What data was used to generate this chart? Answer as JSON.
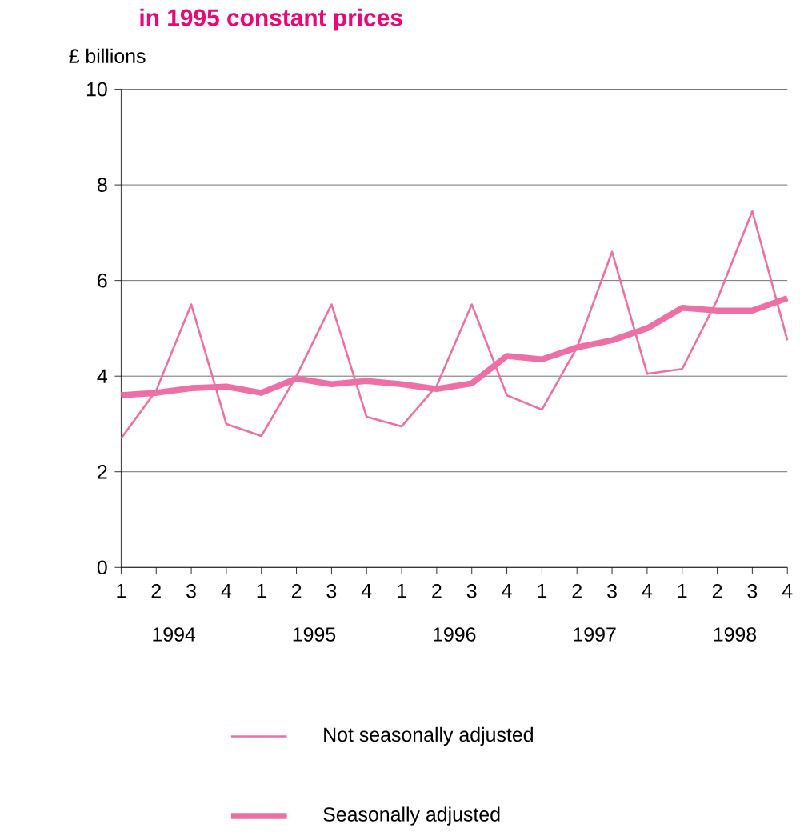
{
  "chart_data": {
    "type": "line",
    "title": "in 1995 constant prices",
    "ylabel": "£ billions",
    "categories": [
      "1",
      "2",
      "3",
      "4",
      "1",
      "2",
      "3",
      "4",
      "1",
      "2",
      "3",
      "4",
      "1",
      "2",
      "3",
      "4",
      "1",
      "2",
      "3",
      "4"
    ],
    "annotations": [
      "1994",
      "1995",
      "1996",
      "1997",
      "1998"
    ],
    "series": [
      {
        "name": "Not seasonally adjusted",
        "color": "#ee6fa5",
        "values": [
          2.7,
          3.7,
          5.5,
          3.0,
          2.75,
          4.0,
          5.5,
          3.15,
          2.95,
          3.8,
          5.5,
          3.6,
          3.3,
          4.6,
          6.6,
          4.05,
          4.15,
          5.6,
          7.45,
          4.75
        ]
      },
      {
        "name": "Seasonally adjusted",
        "color": "#ee6fa5",
        "values": [
          3.6,
          3.65,
          3.75,
          3.78,
          3.65,
          3.95,
          3.83,
          3.9,
          3.83,
          3.73,
          3.85,
          4.42,
          4.35,
          4.6,
          4.75,
          5.0,
          5.43,
          5.37,
          5.37,
          5.63
        ]
      }
    ],
    "ylim": [
      0,
      10
    ],
    "yticks": [
      0,
      2,
      4,
      6,
      8,
      10
    ],
    "grid": "y",
    "legend": "bottom",
    "marker": "none",
    "line_style": "solid"
  }
}
